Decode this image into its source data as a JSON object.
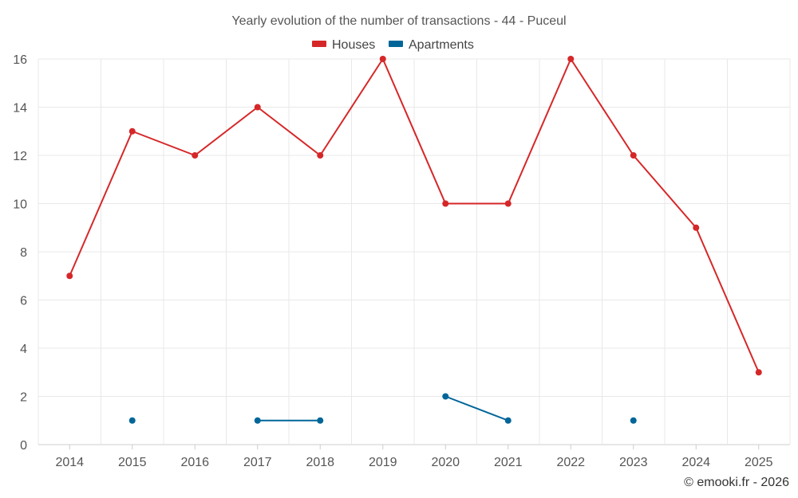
{
  "chart_data": {
    "type": "line",
    "title": "Yearly evolution of the number of transactions - 44 - Puceul",
    "categories": [
      "2014",
      "2015",
      "2016",
      "2017",
      "2018",
      "2019",
      "2020",
      "2021",
      "2022",
      "2023",
      "2024",
      "2025"
    ],
    "series": [
      {
        "name": "Houses",
        "color": "#d62728",
        "values": [
          7,
          13,
          12,
          14,
          12,
          16,
          10,
          10,
          16,
          12,
          9,
          3
        ]
      },
      {
        "name": "Apartments",
        "color": "#006699",
        "values": [
          null,
          1,
          null,
          1,
          1,
          null,
          2,
          1,
          null,
          1,
          null,
          null
        ]
      }
    ],
    "ylim": [
      0,
      16
    ],
    "yticks": [
      0,
      2,
      4,
      6,
      8,
      10,
      12,
      14,
      16
    ],
    "xlabel": "",
    "ylabel": "",
    "grid": true,
    "legend_position": "top-center"
  },
  "credit": "© emooki.fr - 2026"
}
